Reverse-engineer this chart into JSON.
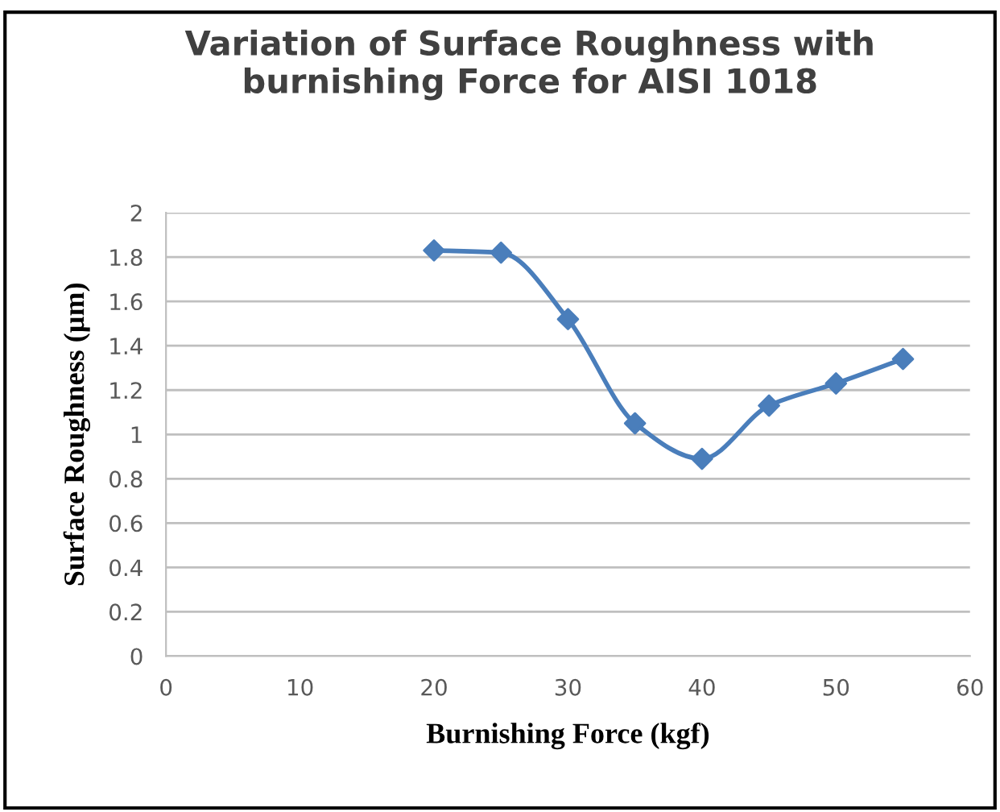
{
  "chart_data": {
    "type": "line",
    "title": "Variation of Surface Roughness with\nburnishing Force for AISI 1018",
    "xlabel": "Burnishing Force (kgf)",
    "ylabel": "Surface Roughness (µm)",
    "x": [
      20,
      25,
      30,
      35,
      40,
      45,
      50,
      55
    ],
    "series": [
      {
        "color": "#4a7ebb",
        "values": [
          1.83,
          1.82,
          1.52,
          1.05,
          0.89,
          1.13,
          1.23,
          1.34
        ]
      }
    ],
    "xlim": [
      0,
      60
    ],
    "xticks": [
      0,
      10,
      20,
      30,
      40,
      50,
      60
    ],
    "ylim": [
      0,
      2
    ],
    "yticks": [
      0,
      0.2,
      0.4,
      0.6,
      0.8,
      1,
      1.2,
      1.4,
      1.6,
      1.8,
      2
    ],
    "grid": "y",
    "marker": "diamond",
    "line_style": "solid",
    "legend": false
  }
}
